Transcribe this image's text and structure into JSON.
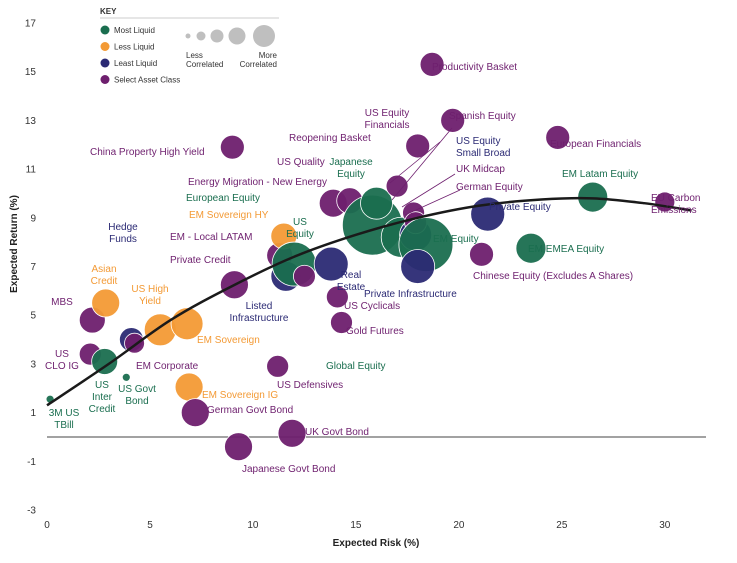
{
  "chart_data": {
    "type": "scatter",
    "xlabel": "Expected Risk (%)",
    "ylabel": "Expected Return (%)",
    "xlim": [
      0,
      32
    ],
    "ylim": [
      -3,
      17
    ],
    "xticks": [
      0,
      5,
      10,
      15,
      20,
      25,
      30
    ],
    "yticks": [
      -3,
      -1,
      1,
      3,
      5,
      7,
      9,
      11,
      13,
      15,
      17
    ],
    "colors": {
      "most_liquid": "#1a6e4f",
      "less_liquid": "#f39a35",
      "least_liquid": "#2b2a74",
      "select": "#6e1f6e"
    },
    "key": {
      "title": "KEY",
      "classes": [
        {
          "name": "Most Liquid",
          "group": "most_liquid"
        },
        {
          "name": "Less Liquid",
          "group": "less_liquid"
        },
        {
          "name": "Least Liquid",
          "group": "least_liquid"
        },
        {
          "name": "Select Asset Class",
          "group": "select"
        }
      ],
      "size_low": "Less Correlated",
      "size_high": "More Correlated"
    },
    "frontier": [
      [
        0,
        1.3
      ],
      [
        3,
        3.0
      ],
      [
        6,
        4.8
      ],
      [
        9,
        6.2
      ],
      [
        12,
        7.4
      ],
      [
        15,
        8.3
      ],
      [
        18,
        9.0
      ],
      [
        21,
        9.5
      ],
      [
        24,
        9.75
      ],
      [
        26.5,
        9.8
      ],
      [
        29,
        9.6
      ],
      [
        31.3,
        9.3
      ]
    ],
    "points": [
      {
        "x": 0.15,
        "y": 1.55,
        "r": 4,
        "group": "most_liquid",
        "label": "3M US\nTBill"
      },
      {
        "x": 2.1,
        "y": 3.4,
        "r": 11,
        "group": "select",
        "label": "US\nCLO IG"
      },
      {
        "x": 2.2,
        "y": 4.8,
        "r": 13,
        "group": "select",
        "label": "MBS"
      },
      {
        "x": 2.85,
        "y": 5.5,
        "r": 14,
        "group": "less_liquid",
        "label": "Asian\nCredit"
      },
      {
        "x": 2.8,
        "y": 3.1,
        "r": 13,
        "group": "most_liquid",
        "label": "US\nInter\nCredit"
      },
      {
        "x": 3.85,
        "y": 2.45,
        "r": 4,
        "group": "most_liquid",
        "label": "US Govt\nBond"
      },
      {
        "x": 4.1,
        "y": 4.0,
        "r": 12,
        "group": "least_liquid",
        "label": "Hedge\nFunds"
      },
      {
        "x": 4.25,
        "y": 3.85,
        "r": 10,
        "group": "select",
        "label": "EM Corporate"
      },
      {
        "x": 5.5,
        "y": 4.4,
        "r": 16,
        "group": "less_liquid",
        "label": "US High\nYield"
      },
      {
        "x": 6.8,
        "y": 4.65,
        "r": 16,
        "group": "less_liquid",
        "label": "EM Sovereign"
      },
      {
        "x": 6.9,
        "y": 2.05,
        "r": 14,
        "group": "less_liquid",
        "label": "EM Sovereign IG"
      },
      {
        "x": 7.2,
        "y": 1.0,
        "r": 14,
        "group": "select",
        "label": "German Govt Bond"
      },
      {
        "x": 9.1,
        "y": 6.25,
        "r": 14,
        "group": "select",
        "label": "Private Credit"
      },
      {
        "x": 9.3,
        "y": -0.4,
        "r": 14,
        "group": "select",
        "label": "Japanese Govt Bond"
      },
      {
        "x": 9.0,
        "y": 11.9,
        "r": 12,
        "group": "select",
        "label": "China Property High Yield"
      },
      {
        "x": 11.2,
        "y": 2.9,
        "r": 11,
        "group": "select",
        "label": "US Defensives"
      },
      {
        "x": 11.3,
        "y": 7.45,
        "r": 13,
        "group": "select",
        "label": "EM - Local LATAM"
      },
      {
        "x": 11.5,
        "y": 8.25,
        "r": 13,
        "group": "less_liquid",
        "label": "EM Sovereign HY"
      },
      {
        "x": 11.6,
        "y": 6.6,
        "r": 15,
        "group": "least_liquid",
        "label": "Listed\nInfrastructure"
      },
      {
        "x": 12.0,
        "y": 7.1,
        "r": 22,
        "group": "most_liquid",
        "label": "European Equity"
      },
      {
        "x": 12.5,
        "y": 6.6,
        "r": 11,
        "group": "select",
        "label": ""
      },
      {
        "x": 11.9,
        "y": 0.15,
        "r": 14,
        "group": "select",
        "label": "UK Govt Bond"
      },
      {
        "x": 13.8,
        "y": 7.1,
        "r": 17,
        "group": "least_liquid",
        "label": "Real\nEstate"
      },
      {
        "x": 13.9,
        "y": 9.6,
        "r": 14,
        "group": "select",
        "label": "Energy Migration - New Energy"
      },
      {
        "x": 14.1,
        "y": 5.75,
        "r": 11,
        "group": "select",
        "label": "US Cyclicals"
      },
      {
        "x": 14.3,
        "y": 4.7,
        "r": 11,
        "group": "select",
        "label": "Gold Futures"
      },
      {
        "x": 14.7,
        "y": 9.7,
        "r": 13,
        "group": "select",
        "label": "US Quality"
      },
      {
        "x": 15.8,
        "y": 8.7,
        "r": 30,
        "group": "most_liquid",
        "label": "US\nEquity"
      },
      {
        "x": 16.0,
        "y": 9.6,
        "r": 16,
        "group": "most_liquid",
        "label": "Japanese\nEquity"
      },
      {
        "x": 17.0,
        "y": 10.3,
        "r": 11,
        "group": "select",
        "label": "Reopening Basket"
      },
      {
        "x": 17.2,
        "y": 8.2,
        "r": 20,
        "group": "most_liquid",
        "label": "Global Equity"
      },
      {
        "x": 17.8,
        "y": 9.2,
        "r": 11,
        "group": "select",
        "label": "German Equity"
      },
      {
        "x": 17.9,
        "y": 8.3,
        "r": 16,
        "group": "least_liquid",
        "label": "US Equity\nSmall Broad"
      },
      {
        "x": 17.9,
        "y": 8.8,
        "r": 11,
        "group": "select",
        "label": "UK Midcap"
      },
      {
        "x": 18.4,
        "y": 7.9,
        "r": 27,
        "group": "most_liquid",
        "label": "EM Equity"
      },
      {
        "x": 18.0,
        "y": 7.0,
        "r": 17,
        "group": "least_liquid",
        "label": "Private Infrastructure"
      },
      {
        "x": 18.0,
        "y": 11.95,
        "r": 12,
        "group": "select",
        "label": "US Equity\nFinancials"
      },
      {
        "x": 18.7,
        "y": 15.3,
        "r": 12,
        "group": "select",
        "label": "Productivity Basket"
      },
      {
        "x": 19.7,
        "y": 13.0,
        "r": 12,
        "group": "select",
        "label": "Spanish Equity"
      },
      {
        "x": 21.1,
        "y": 7.5,
        "r": 12,
        "group": "select",
        "label": "Chinese Equity (Excludes A Shares)"
      },
      {
        "x": 21.4,
        "y": 9.15,
        "r": 17,
        "group": "least_liquid",
        "label": "Private Equity"
      },
      {
        "x": 23.5,
        "y": 7.75,
        "r": 15,
        "group": "most_liquid",
        "label": "EM EMEA Equity"
      },
      {
        "x": 24.8,
        "y": 12.3,
        "r": 12,
        "group": "select",
        "label": "European Financials"
      },
      {
        "x": 26.5,
        "y": 9.85,
        "r": 15,
        "group": "most_liquid",
        "label": "EM Latam Equity"
      },
      {
        "x": 30.0,
        "y": 9.65,
        "r": 10,
        "group": "select",
        "label": "EU Carbon\nEmissions"
      }
    ]
  }
}
